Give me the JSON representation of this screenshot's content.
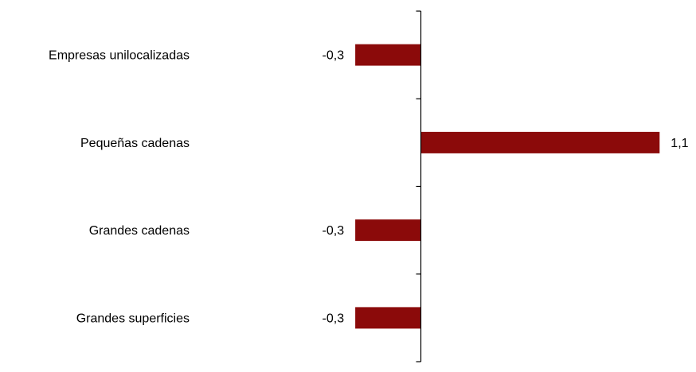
{
  "chart_data": {
    "type": "bar",
    "orientation": "horizontal",
    "categories": [
      "Empresas unilocalizadas",
      "Pequeñas cadenas",
      "Grandes cadenas",
      "Grandes superficies"
    ],
    "values": [
      -0.3,
      1.1,
      -0.3,
      -0.3
    ],
    "value_labels": [
      "-0,3",
      "1,1",
      "-0,3",
      "-0,3"
    ],
    "title": "",
    "xlabel": "",
    "ylabel": "",
    "grid": false,
    "legend": "none",
    "bar_color": "#8B0A0A",
    "axis_color": "#000000"
  }
}
